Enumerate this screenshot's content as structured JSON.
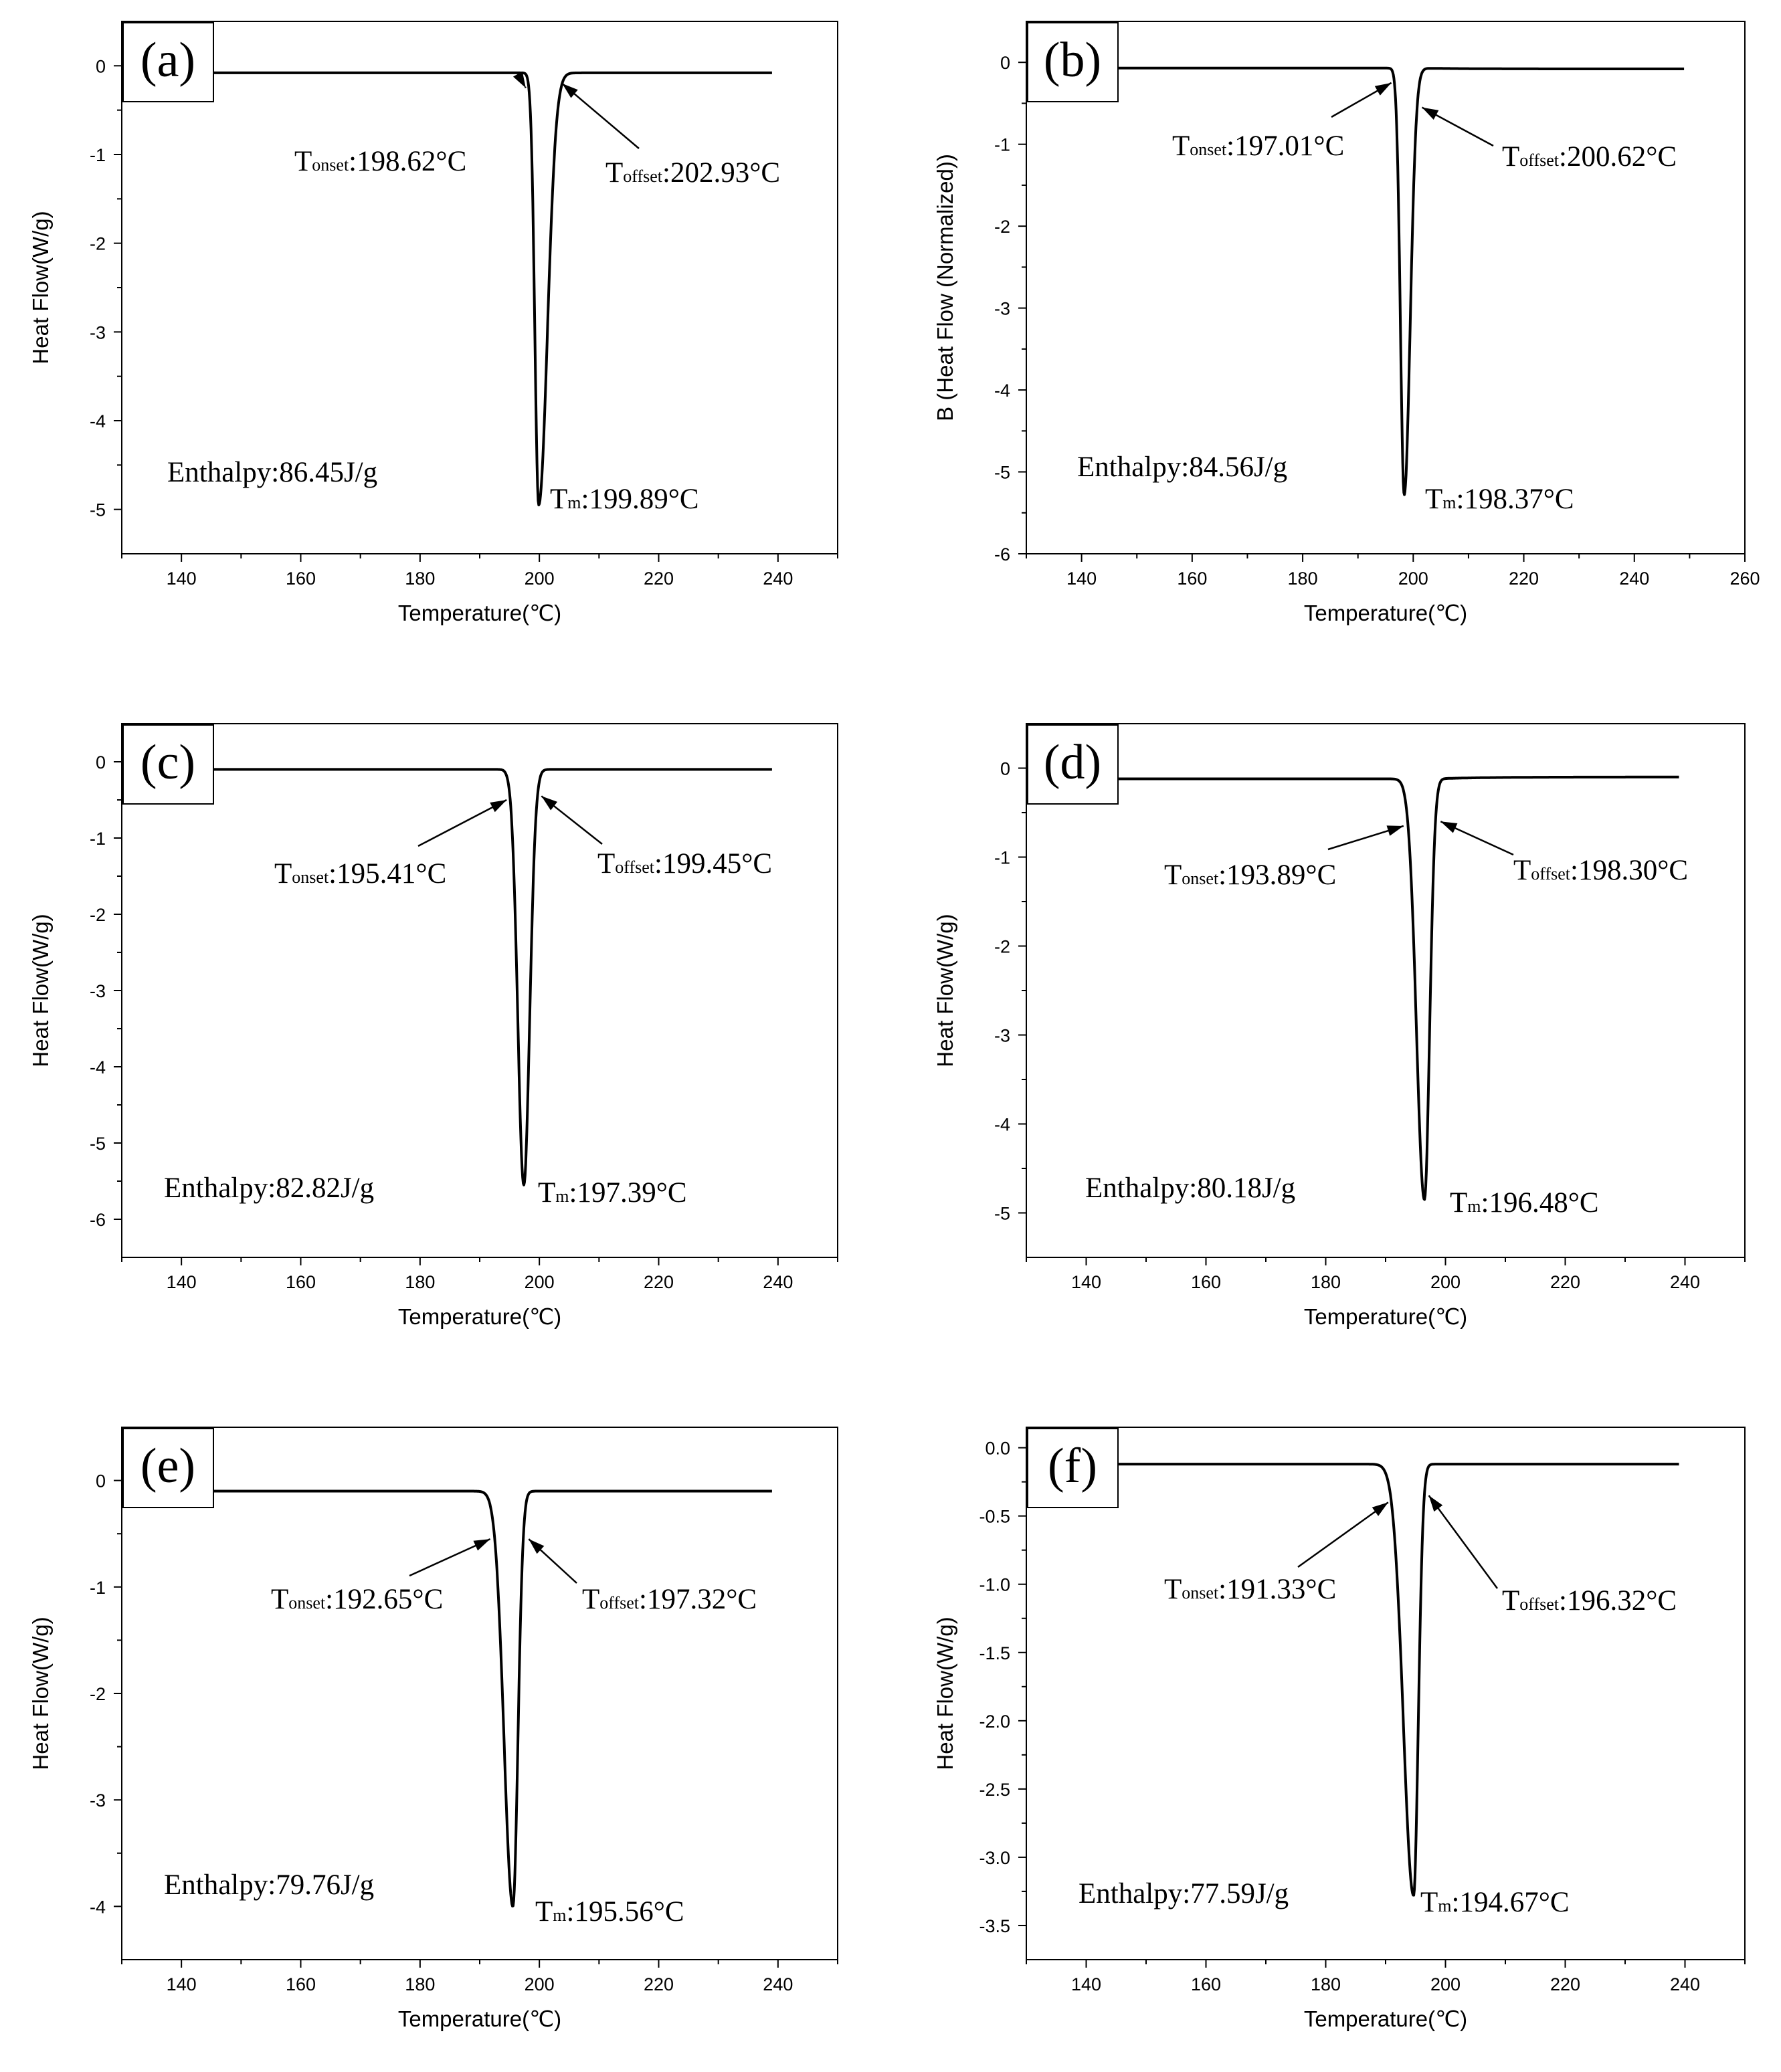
{
  "chart_data": [
    {
      "panel": "(a)",
      "type": "line",
      "xlabel": "Temperature(℃)",
      "ylabel": "Heat Flow(W/g)",
      "xlim": [
        130,
        250
      ],
      "ylim": [
        -5.5,
        0.5
      ],
      "xticks": [
        140,
        160,
        180,
        200,
        220,
        240
      ],
      "xtick_labels": [
        "140",
        "160",
        "180",
        "200",
        "220",
        "240"
      ],
      "yticks": [
        0,
        -1,
        -2,
        -3,
        -4,
        -5
      ],
      "ytick_labels": [
        "0",
        "-1",
        "-2",
        "-3",
        "-4",
        "-5"
      ],
      "x_range": [
        131,
        239
      ],
      "baseline_left": -0.08,
      "baseline_right": -0.08,
      "onset": {
        "label": "onset",
        "value": "198.62°C",
        "x": 198.62
      },
      "offset": {
        "label": "offset",
        "value": "202.93°C",
        "x": 202.93
      },
      "peak": {
        "label": "m",
        "value": "199.89°C",
        "x": 199.89,
        "y": -4.95
      },
      "enthalpy": "Enthalpy:86.45J/g"
    },
    {
      "panel": "(b)",
      "type": "line",
      "xlabel": "Temperature(℃)",
      "ylabel": "B (Heat Flow (Normalized))",
      "xlim": [
        130,
        260
      ],
      "ylim": [
        -6,
        0.5
      ],
      "xticks": [
        140,
        160,
        180,
        200,
        220,
        240,
        260
      ],
      "xtick_labels": [
        "140",
        "160",
        "180",
        "200",
        "220",
        "240",
        "260"
      ],
      "yticks": [
        0,
        -1,
        -2,
        -3,
        -4,
        -5,
        -6
      ],
      "ytick_labels": [
        "0",
        "-1",
        "-2",
        "-3",
        "-4",
        "-5",
        "-6"
      ],
      "x_range": [
        131,
        249
      ],
      "baseline_left": -0.07,
      "baseline_right": -0.08,
      "onset": {
        "label": "onset",
        "value": "197.01°C",
        "x": 197.01
      },
      "offset": {
        "label": "offset",
        "value": "200.62°C",
        "x": 200.62
      },
      "peak": {
        "label": "m",
        "value": "198.37°C",
        "x": 198.37,
        "y": -5.28
      },
      "enthalpy": "Enthalpy:84.56J/g"
    },
    {
      "panel": "(c)",
      "type": "line",
      "xlabel": "Temperature(℃)",
      "ylabel": "Heat Flow(W/g)",
      "xlim": [
        130,
        250
      ],
      "ylim": [
        -6.5,
        0.5
      ],
      "xticks": [
        140,
        160,
        180,
        200,
        220,
        240
      ],
      "xtick_labels": [
        "140",
        "160",
        "180",
        "200",
        "220",
        "240"
      ],
      "yticks": [
        0,
        -1,
        -2,
        -3,
        -4,
        -5,
        -6
      ],
      "ytick_labels": [
        "0",
        "-1",
        "-2",
        "-3",
        "-4",
        "-5",
        "-6"
      ],
      "x_range": [
        131,
        239
      ],
      "baseline_left": -0.1,
      "baseline_right": -0.1,
      "onset": {
        "label": "onset",
        "value": "195.41°C",
        "x": 195.41
      },
      "offset": {
        "label": "offset",
        "value": "199.45°C",
        "x": 199.45
      },
      "peak": {
        "label": "m",
        "value": "197.39°C",
        "x": 197.39,
        "y": -5.55
      },
      "enthalpy": "Enthalpy:82.82J/g"
    },
    {
      "panel": "(d)",
      "type": "line",
      "xlabel": "Temperature(℃)",
      "ylabel": "Heat Flow(W/g)",
      "xlim": [
        130,
        250
      ],
      "ylim": [
        -5.5,
        0.5
      ],
      "xticks": [
        140,
        160,
        180,
        200,
        220,
        240
      ],
      "xtick_labels": [
        "140",
        "160",
        "180",
        "200",
        "220",
        "240"
      ],
      "yticks": [
        0,
        -1,
        -2,
        -3,
        -4,
        -5
      ],
      "ytick_labels": [
        "0",
        "-1",
        "-2",
        "-3",
        "-4",
        "-5"
      ],
      "x_range": [
        131,
        239
      ],
      "baseline_left": -0.12,
      "baseline_right": -0.1,
      "onset": {
        "label": "onset",
        "value": "193.89°C",
        "x": 193.89
      },
      "offset": {
        "label": "offset",
        "value": "198.30°C",
        "x": 198.3
      },
      "peak": {
        "label": "m",
        "value": "196.48°C",
        "x": 196.48,
        "y": -4.85
      },
      "enthalpy": "Enthalpy:80.18J/g"
    },
    {
      "panel": "(e)",
      "type": "line",
      "xlabel": "Temperature(℃)",
      "ylabel": "Heat Flow(W/g)",
      "xlim": [
        130,
        250
      ],
      "ylim": [
        -4.5,
        0.5
      ],
      "xticks": [
        140,
        160,
        180,
        200,
        220,
        240
      ],
      "xtick_labels": [
        "140",
        "160",
        "180",
        "200",
        "220",
        "240"
      ],
      "yticks": [
        0,
        -1,
        -2,
        -3,
        -4
      ],
      "ytick_labels": [
        "0",
        "-1",
        "-2",
        "-3",
        "-4"
      ],
      "x_range": [
        131,
        239
      ],
      "baseline_left": -0.1,
      "baseline_right": -0.1,
      "onset": {
        "label": "onset",
        "value": "192.65°C",
        "x": 192.65
      },
      "offset": {
        "label": "offset",
        "value": "197.32°C",
        "x": 197.32
      },
      "peak": {
        "label": "m",
        "value": "195.56°C",
        "x": 195.56,
        "y": -4.0
      },
      "enthalpy": "Enthalpy:79.76J/g"
    },
    {
      "panel": "(f)",
      "type": "line",
      "xlabel": "Temperature(℃)",
      "ylabel": "Heat Flow(W/g)",
      "xlim": [
        130,
        250
      ],
      "ylim": [
        -3.75,
        0.15
      ],
      "xticks": [
        140,
        160,
        180,
        200,
        220,
        240
      ],
      "xtick_labels": [
        "140",
        "160",
        "180",
        "200",
        "220",
        "240"
      ],
      "yticks": [
        0.0,
        -0.5,
        -1.0,
        -1.5,
        -2.0,
        -2.5,
        -3.0,
        -3.5
      ],
      "ytick_labels": [
        "0.0",
        "-0.5",
        "-1.0",
        "-1.5",
        "-2.0",
        "-2.5",
        "-3.0",
        "-3.5"
      ],
      "x_range": [
        131,
        239
      ],
      "baseline_left": -0.12,
      "baseline_right": -0.12,
      "onset": {
        "label": "onset",
        "value": "191.33°C",
        "x": 191.33
      },
      "offset": {
        "label": "offset",
        "value": "196.32°C",
        "x": 196.32
      },
      "peak": {
        "label": "m",
        "value": "194.67°C",
        "x": 194.67,
        "y": -3.28
      },
      "enthalpy": "Enthalpy:77.59J/g"
    }
  ]
}
